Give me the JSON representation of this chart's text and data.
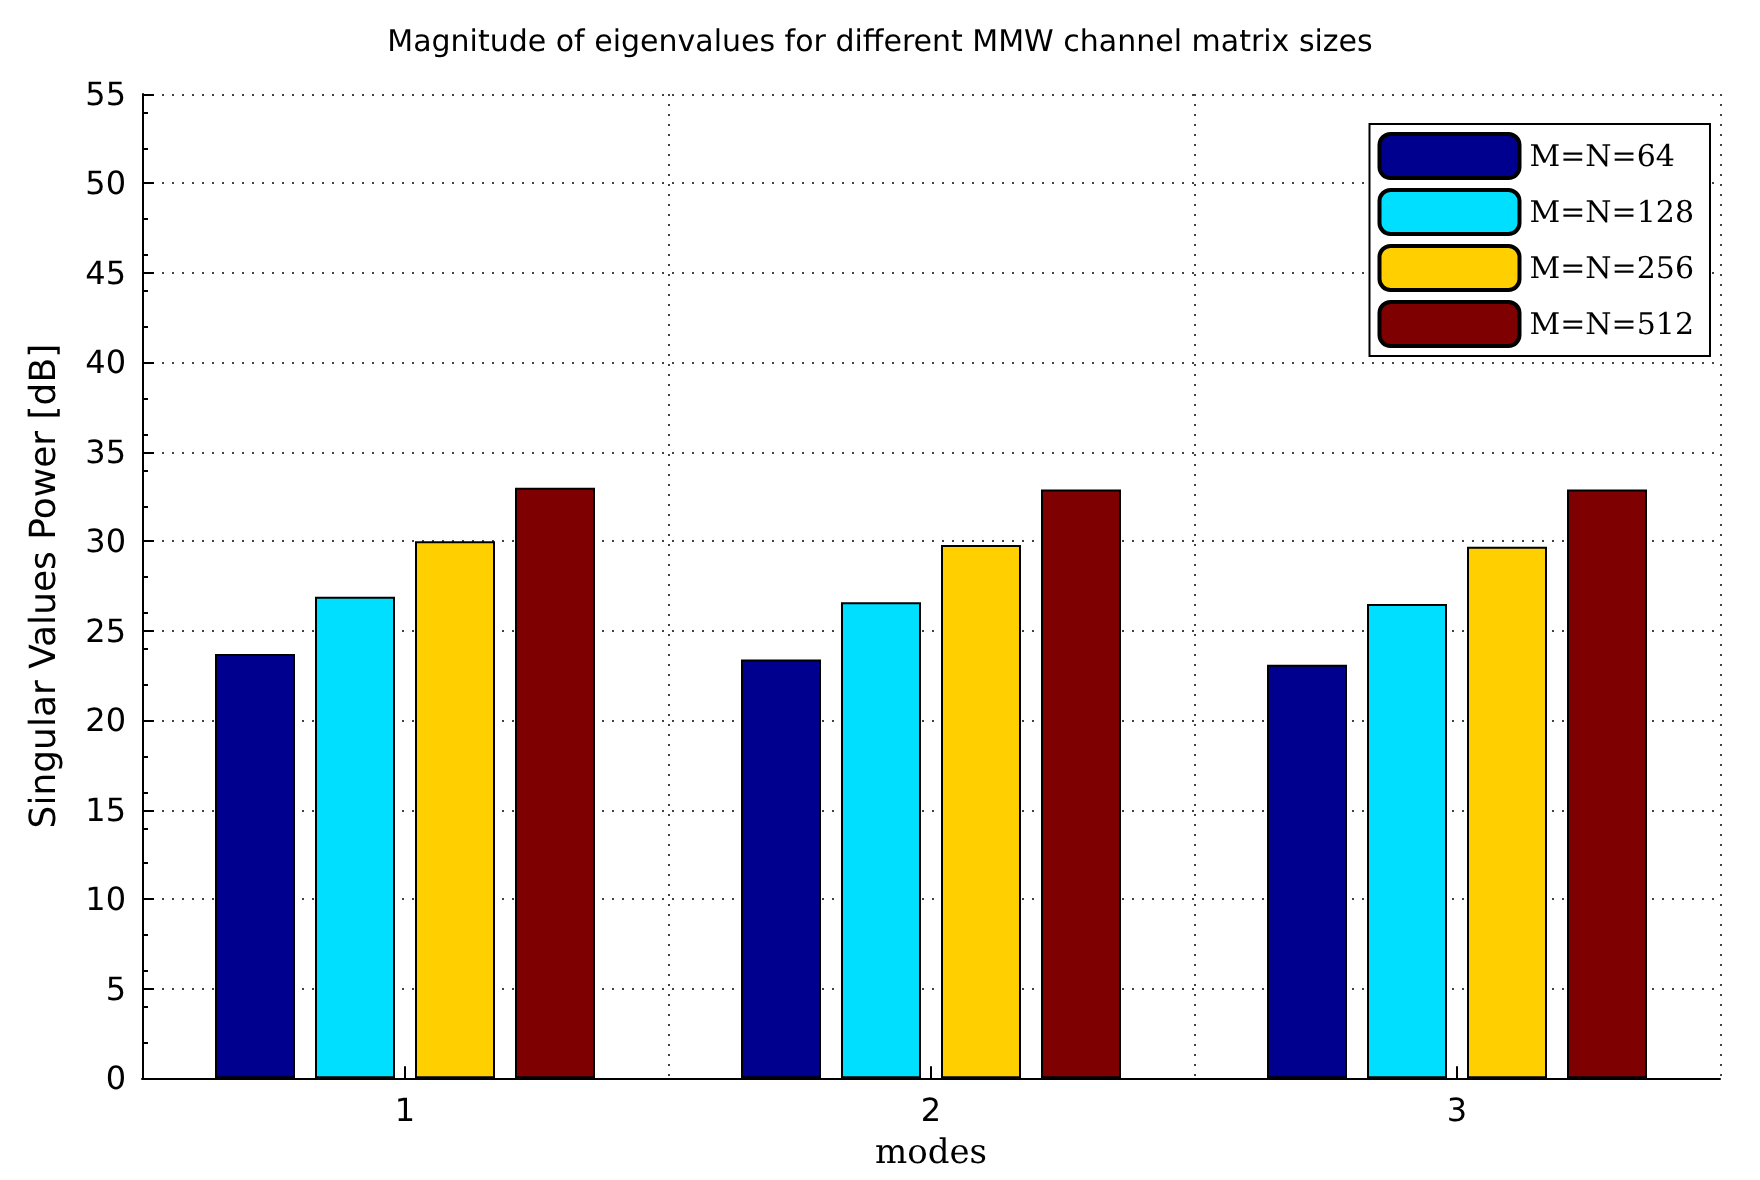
{
  "chart_data": {
    "type": "bar",
    "title": "Magnitude of eigenvalues for different MMW channel matrix sizes",
    "xlabel": "modes",
    "ylabel": "Singular Values Power [dB]",
    "categories": [
      "1",
      "2",
      "3"
    ],
    "series": [
      {
        "name": "M=N=64",
        "color": "#00008f",
        "values": [
          23.7,
          23.4,
          23.1
        ]
      },
      {
        "name": "M=N=128",
        "color": "#00dfff",
        "values": [
          26.9,
          26.6,
          26.5
        ]
      },
      {
        "name": "M=N=256",
        "color": "#ffcf00",
        "values": [
          30.0,
          29.8,
          29.7
        ]
      },
      {
        "name": "M=N=512",
        "color": "#7f0000",
        "values": [
          33.0,
          32.9,
          32.9
        ]
      }
    ],
    "ylim": [
      0,
      55
    ],
    "yticks": [
      0,
      5,
      10,
      15,
      20,
      25,
      30,
      35,
      40,
      45,
      50,
      55
    ],
    "grid": true,
    "legend": "top right"
  }
}
